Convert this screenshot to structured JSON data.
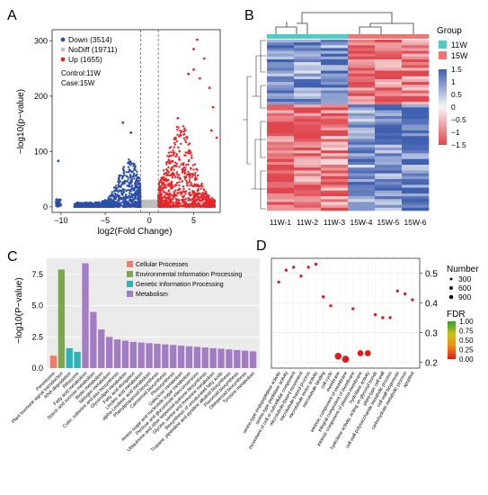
{
  "panels": {
    "A": {
      "letter": "A"
    },
    "B": {
      "letter": "B"
    },
    "C": {
      "letter": "C"
    },
    "D": {
      "letter": "D"
    }
  },
  "chart_data": [
    {
      "panel": "A",
      "type": "scatter",
      "xlabel": "log2(Fold Change)",
      "ylabel": "−log10(p−value)",
      "xlim": [
        -11,
        8
      ],
      "ylim": [
        -10,
        320
      ],
      "xticks": [
        "−10",
        "−5",
        "0",
        "5"
      ],
      "xtick_values": [
        -10,
        -5,
        0,
        5
      ],
      "yticks": [
        "0",
        "100",
        "200",
        "300"
      ],
      "ytick_values": [
        0,
        100,
        200,
        300
      ],
      "threshold_lines_x": [
        -1,
        1
      ],
      "legend": [
        {
          "label": "Down (3514)",
          "color": "#2b4fa8"
        },
        {
          "label": "NoDiff (19711)",
          "color": "#bfbfbf"
        },
        {
          "label": "Up (1655)",
          "color": "#e8262a"
        }
      ],
      "annotation": [
        "Control:11W",
        "Case:15W"
      ],
      "highlight_points": [
        {
          "x": -10.3,
          "y": 83,
          "group": "down"
        },
        {
          "x": -3.0,
          "y": 152,
          "group": "down"
        },
        {
          "x": -2.1,
          "y": 134,
          "group": "down"
        },
        {
          "x": 3.2,
          "y": 160,
          "group": "up"
        },
        {
          "x": 4.4,
          "y": 240,
          "group": "up"
        },
        {
          "x": 5.0,
          "y": 285,
          "group": "up"
        },
        {
          "x": 5.0,
          "y": 248,
          "group": "up"
        },
        {
          "x": 5.4,
          "y": 302,
          "group": "up"
        },
        {
          "x": 5.7,
          "y": 232,
          "group": "up"
        },
        {
          "x": 6.2,
          "y": 268,
          "group": "up"
        },
        {
          "x": 6.8,
          "y": 215,
          "group": "up"
        },
        {
          "x": 7.2,
          "y": 180,
          "group": "up"
        },
        {
          "x": 7.0,
          "y": 138,
          "group": "up"
        },
        {
          "x": 7.6,
          "y": 125,
          "group": "up"
        }
      ]
    },
    {
      "panel": "B",
      "type": "heatmap",
      "columns": [
        "11W-1",
        "11W-2",
        "11W-3",
        "15W-4",
        "15W-5",
        "15W-6"
      ],
      "groups": [
        "11W",
        "11W",
        "11W",
        "15W",
        "15W",
        "15W"
      ],
      "group_legend_title": "Group",
      "group_legend": [
        {
          "label": "11W",
          "color": "#4ecdc4"
        },
        {
          "label": "15W",
          "color": "#f07474"
        }
      ],
      "color_scale_ticks": [
        "1.5",
        "1",
        "0.5",
        "0",
        "−0.5",
        "−1",
        "−1.5"
      ],
      "color_scale_values": [
        1.5,
        1,
        0.5,
        0,
        -0.5,
        -1,
        -1.5
      ],
      "color_low": "#3f5fb0",
      "color_mid": "#f7f7f7",
      "color_high": "#e0464e",
      "row_blocks": [
        {
          "fraction": 0.38,
          "values": [
            -1.0,
            -0.9,
            -1.0,
            1.2,
            1.1,
            1.0
          ]
        },
        {
          "fraction": 0.62,
          "values": [
            1.1,
            1.0,
            0.9,
            -0.9,
            -1.0,
            -1.1
          ]
        }
      ]
    },
    {
      "panel": "C",
      "type": "bar",
      "ylabel": "−log10(P−value)",
      "ylim": [
        0,
        8.8
      ],
      "yticks": [
        "0.0",
        "2.5",
        "5.0",
        "7.5"
      ],
      "ytick_values": [
        0,
        2.5,
        5.0,
        7.5
      ],
      "legend": [
        {
          "label": "Cellular Processes",
          "color": "#f17c67"
        },
        {
          "label": "Environmental Information Processing",
          "color": "#7aa846"
        },
        {
          "label": "Genetic Information Processing",
          "color": "#2cb5b8"
        },
        {
          "label": "Metabolism",
          "color": "#a37cc6"
        }
      ],
      "categories": [
        "Peroxisome",
        "Plant hormone signal transduction",
        "RNA degradation",
        "Ribosome",
        "Fatty acid metabolism",
        "Starch and sucrose metabolism",
        "Biotin metabolism",
        "Nitrogen metabolism",
        "Cutin, suberine and wax biosynthesis",
        "Glycerolipid metabolism",
        "Fatty acid elongation",
        "Linoleic acid metabolism",
        "alpha-Linolenic acid metabolism",
        "Phenylpropanoid biosynthesis",
        "Carotenoid biosynthesis",
        "Photosynthesis",
        "Galactose metabolism",
        "Amino sugar and nucleotide sugar metabolism",
        "Pentose and glucuronate interconversions",
        "Ubiquinone and other terpenoid-quinone biosynthesis",
        "Glycine, serine and threonine metabolism",
        "Biosynthesis of unsaturated fatty acids",
        "Tropane, piperidine and pyridine alkaloid biosynthesis",
        "Flavonoid biosynthesis",
        "Diterpenoid biosynthesis",
        "Tyrosine metabolism"
      ],
      "values": [
        1.0,
        7.9,
        1.6,
        1.3,
        8.4,
        4.5,
        3.1,
        2.5,
        2.3,
        2.2,
        2.1,
        2.05,
        2.0,
        1.95,
        1.9,
        1.85,
        1.8,
        1.75,
        1.7,
        1.65,
        1.6,
        1.55,
        1.5,
        1.45,
        1.4,
        1.35
      ],
      "category_groups": [
        "Cellular Processes",
        "Environmental Information Processing",
        "Genetic Information Processing",
        "Genetic Information Processing",
        "Metabolism",
        "Metabolism",
        "Metabolism",
        "Metabolism",
        "Metabolism",
        "Metabolism",
        "Metabolism",
        "Metabolism",
        "Metabolism",
        "Metabolism",
        "Metabolism",
        "Metabolism",
        "Metabolism",
        "Metabolism",
        "Metabolism",
        "Metabolism",
        "Metabolism",
        "Metabolism",
        "Metabolism",
        "Metabolism",
        "Metabolism",
        "Metabolism"
      ]
    },
    {
      "panel": "D",
      "type": "scatter",
      "ylim": [
        0.18,
        0.55
      ],
      "yticks": [
        "0.2",
        "0.3",
        "0.4",
        "0.5"
      ],
      "ytick_values": [
        0.2,
        0.3,
        0.4,
        0.5
      ],
      "size_legend_title": "Number",
      "size_legend": [
        {
          "label": "300",
          "value": 300
        },
        {
          "label": "600",
          "value": 600
        },
        {
          "label": "900",
          "value": 900
        }
      ],
      "color_legend_title": "FDR",
      "color_legend_ticks": [
        "1.00",
        "0.75",
        "0.50",
        "0.25",
        "0.00"
      ],
      "color_legend_values": [
        1.0,
        0.75,
        0.5,
        0.25,
        0.0
      ],
      "categories": [
        "serine-type endopeptidase activity",
        "serine-type peptidase activity",
        "movement of cell or subcellular component",
        "microtubule-based movement",
        "microtubule-based process",
        "microtubule motor activity",
        "microtubule binding",
        "cell cycle",
        "membrane",
        "intrinsic component of membrane",
        "integral component of membrane",
        "intrinsic component of plasma membrane",
        "hydrolase activity",
        "hydrolase activity, acting on glycosyl bonds",
        "plant-type cell wall",
        "cell wall polysaccharide metabolic process",
        "cell wall biogenesis",
        "carbohydrate metabolic process",
        "apoplast"
      ],
      "values": [
        0.47,
        0.51,
        0.52,
        0.49,
        0.52,
        0.53,
        0.42,
        0.39,
        0.22,
        0.21,
        0.38,
        0.23,
        0.23,
        0.36,
        0.35,
        0.35,
        0.44,
        0.43,
        0.41
      ],
      "numbers": [
        60,
        60,
        60,
        60,
        60,
        60,
        60,
        60,
        700,
        750,
        60,
        500,
        520,
        60,
        60,
        60,
        60,
        60,
        60
      ],
      "fdr": [
        0,
        0,
        0,
        0,
        0,
        0,
        0,
        0,
        0,
        0,
        0,
        0,
        0,
        0,
        0,
        0,
        0,
        0,
        0
      ]
    }
  ]
}
